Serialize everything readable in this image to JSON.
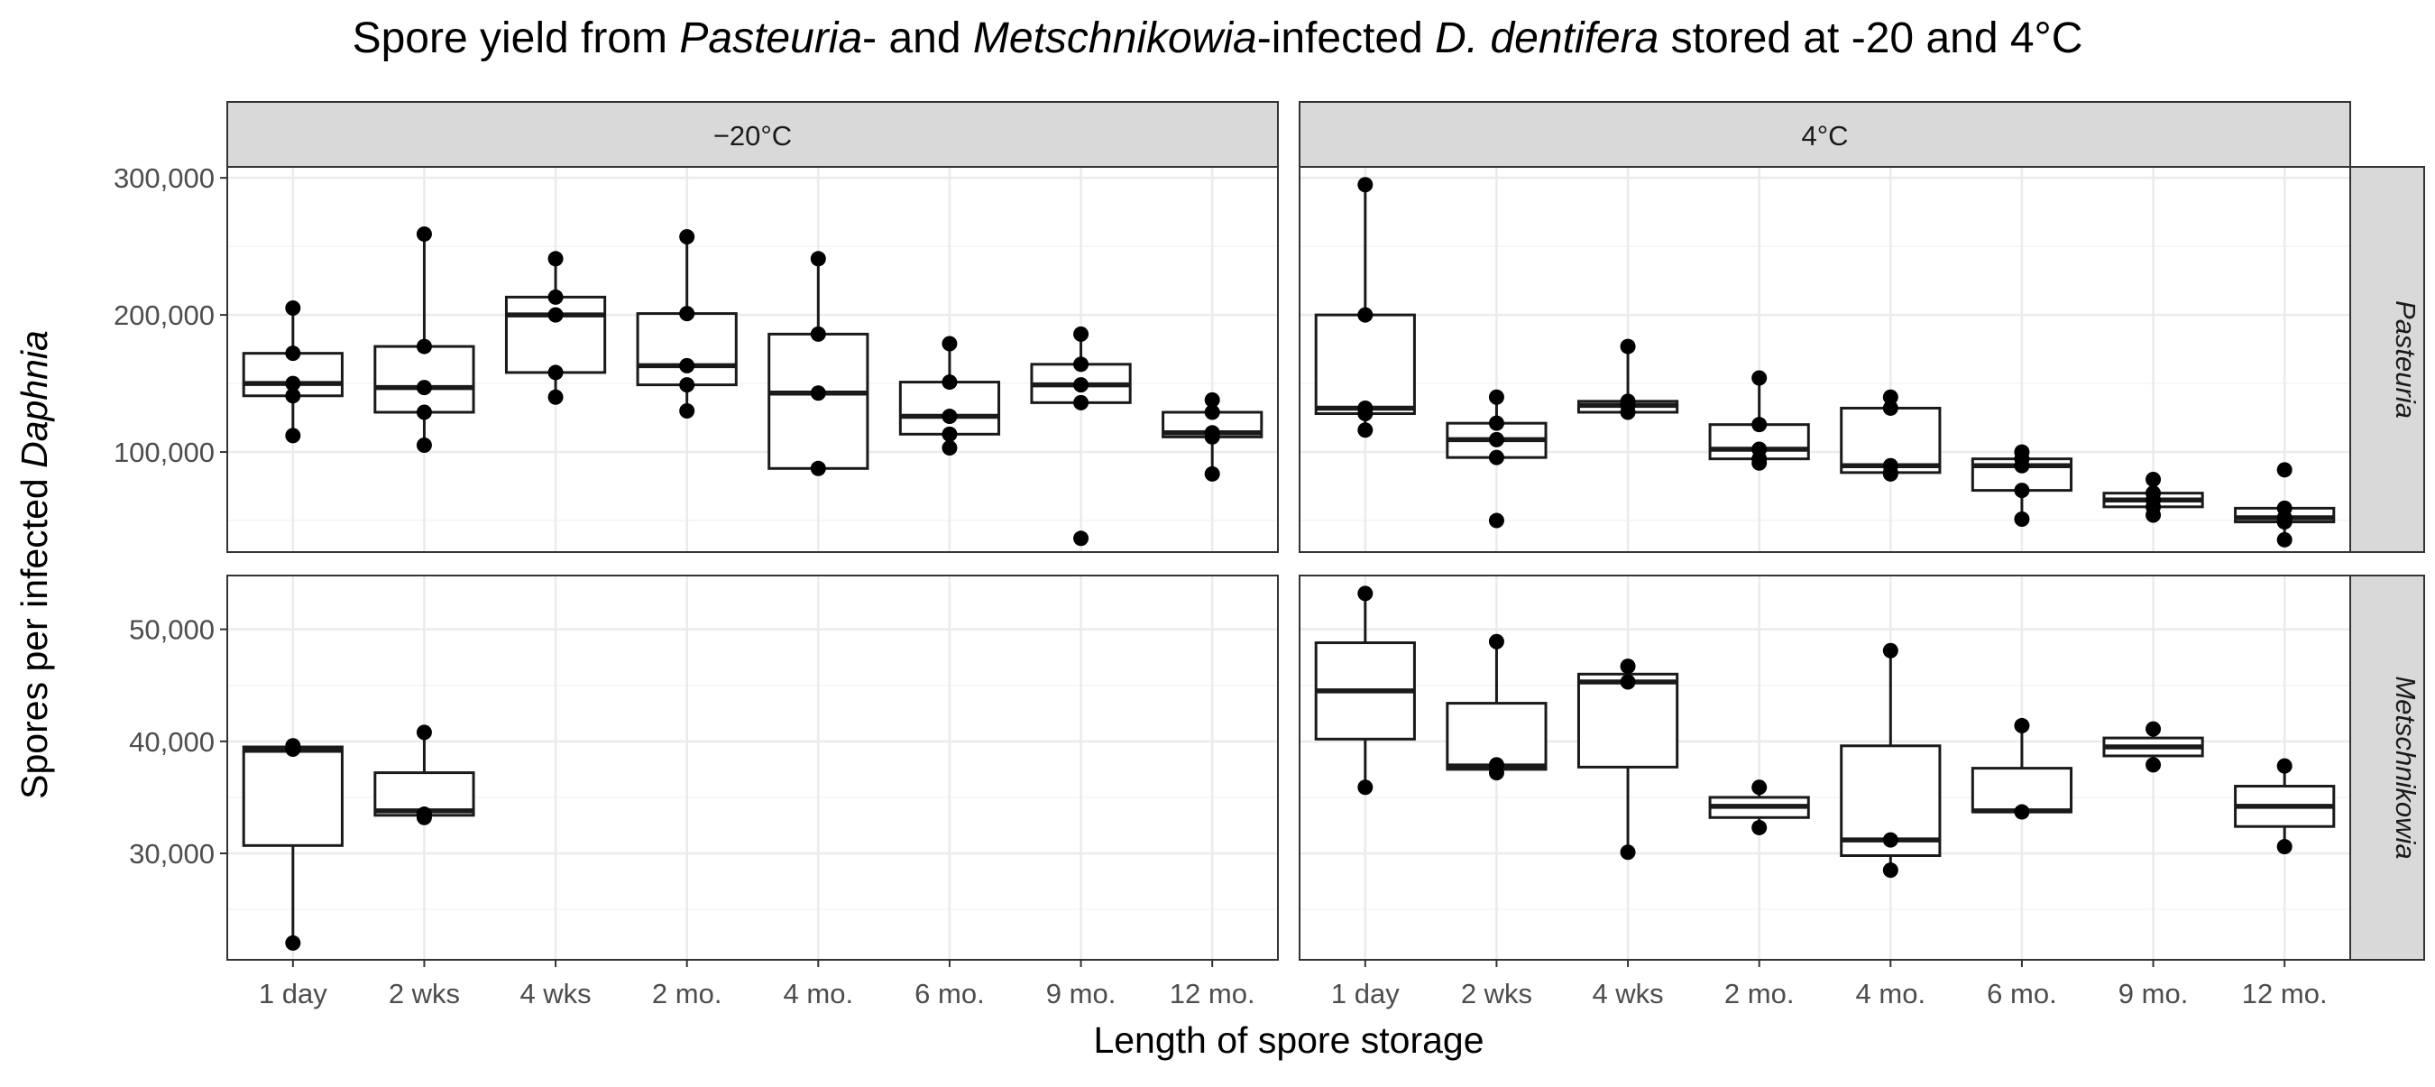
{
  "chart_data": {
    "type": "box",
    "title": {
      "parts": [
        {
          "text": "Spore yield from ",
          "italic": false
        },
        {
          "text": "Pasteuria",
          "italic": true
        },
        {
          "text": "- and ",
          "italic": false
        },
        {
          "text": "Metschnikowia",
          "italic": true
        },
        {
          "text": "-infected ",
          "italic": false
        },
        {
          "text": "D. dentifera",
          "italic": true
        },
        {
          "text": " stored at -20 and 4°C",
          "italic": false
        }
      ]
    },
    "xlabel": "Length of spore storage",
    "ylabel": {
      "parts": [
        {
          "text": "Spores per infected ",
          "italic": false
        },
        {
          "text": "Daphnia",
          "italic": true
        }
      ]
    },
    "categories": [
      "1 day",
      "2 wks",
      "4 wks",
      "2 mo.",
      "4 mo.",
      "6 mo.",
      "9 mo.",
      "12 mo."
    ],
    "facet_columns": [
      "−20°C",
      "4°C"
    ],
    "facet_rows": [
      "Pasteuria",
      "Metschnikowia"
    ],
    "rows": [
      {
        "ylim": [
          27000,
          308000
        ],
        "yticks": [
          100000,
          200000,
          300000
        ],
        "ytick_labels": [
          "100,000",
          "200,000",
          "300,000"
        ],
        "minor_yticks": [
          50000,
          150000,
          250000
        ]
      },
      {
        "ylim": [
          20500,
          54800
        ],
        "yticks": [
          30000,
          40000,
          50000
        ],
        "ytick_labels": [
          "30,000",
          "40,000",
          "50,000"
        ],
        "minor_yticks": [
          25000,
          35000,
          45000
        ]
      }
    ],
    "colors": {
      "panel_border": "#333333",
      "grid_major": "#ebebeb",
      "grid_minor": "#f4f4f4",
      "strip_fill": "#d9d9d9",
      "box_stroke": "#1a1a1a",
      "point_fill": "#000000"
    },
    "panels": [
      {
        "row": 0,
        "col": 0,
        "boxes": [
          {
            "category": "1 day",
            "lower_whisker": 112000,
            "q1": 141000,
            "median": 150000,
            "q3": 172000,
            "upper_whisker": 205000,
            "points": [
              205000,
              172000,
              150000,
              141000,
              112000
            ]
          },
          {
            "category": "2 wks",
            "lower_whisker": 105000,
            "q1": 129000,
            "median": 147000,
            "q3": 177000,
            "upper_whisker": 259000,
            "points": [
              259000,
              177000,
              147000,
              129000,
              105000
            ]
          },
          {
            "category": "4 wks",
            "lower_whisker": 140000,
            "q1": 158000,
            "median": 200000,
            "q3": 213000,
            "upper_whisker": 241000,
            "points": [
              241000,
              213000,
              200000,
              158000,
              140000
            ]
          },
          {
            "category": "2 mo.",
            "lower_whisker": 130000,
            "q1": 149000,
            "median": 163000,
            "q3": 201000,
            "upper_whisker": 257000,
            "points": [
              257000,
              201000,
              163000,
              149000,
              130000
            ]
          },
          {
            "category": "4 mo.",
            "lower_whisker": 88000,
            "q1": 88000,
            "median": 143000,
            "q3": 186000,
            "upper_whisker": 241000,
            "points": [
              241000,
              186000,
              143000,
              88000
            ]
          },
          {
            "category": "6 mo.",
            "lower_whisker": 103000,
            "q1": 113000,
            "median": 126000,
            "q3": 151000,
            "upper_whisker": 179000,
            "points": [
              179000,
              151000,
              126000,
              113000,
              103000
            ]
          },
          {
            "category": "9 mo.",
            "lower_whisker": 136000,
            "q1": 136000,
            "median": 149000,
            "q3": 164000,
            "upper_whisker": 186000,
            "points": [
              186000,
              164000,
              149000,
              136000,
              37000
            ]
          },
          {
            "category": "12 mo.",
            "lower_whisker": 84000,
            "q1": 111000,
            "median": 114000,
            "q3": 129000,
            "upper_whisker": 138000,
            "points": [
              138000,
              129000,
              114000,
              111000,
              84000
            ]
          }
        ]
      },
      {
        "row": 0,
        "col": 1,
        "boxes": [
          {
            "category": "1 day",
            "lower_whisker": 116000,
            "q1": 128000,
            "median": 132000,
            "q3": 200000,
            "upper_whisker": 295000,
            "points": [
              295000,
              200000,
              132000,
              128000,
              116000
            ]
          },
          {
            "category": "2 wks",
            "lower_whisker": 96000,
            "q1": 96000,
            "median": 109000,
            "q3": 121000,
            "upper_whisker": 140000,
            "points": [
              140000,
              121000,
              109000,
              96000,
              50000
            ]
          },
          {
            "category": "4 wks",
            "lower_whisker": 129000,
            "q1": 129000,
            "median": 134000,
            "q3": 137000,
            "upper_whisker": 177000,
            "points": [
              177000,
              137000,
              134000,
              129000
            ]
          },
          {
            "category": "2 mo.",
            "lower_whisker": 92000,
            "q1": 95000,
            "median": 102000,
            "q3": 120000,
            "upper_whisker": 154000,
            "points": [
              154000,
              120000,
              102000,
              95000,
              92000
            ]
          },
          {
            "category": "4 mo.",
            "lower_whisker": 84000,
            "q1": 85000,
            "median": 90000,
            "q3": 132000,
            "upper_whisker": 140000,
            "points": [
              140000,
              132000,
              90000,
              85000,
              84000
            ]
          },
          {
            "category": "6 mo.",
            "lower_whisker": 51000,
            "q1": 72000,
            "median": 90000,
            "q3": 95000,
            "upper_whisker": 100000,
            "points": [
              100000,
              95000,
              90000,
              72000,
              51000
            ]
          },
          {
            "category": "9 mo.",
            "lower_whisker": 54000,
            "q1": 60000,
            "median": 65000,
            "q3": 70000,
            "upper_whisker": 80000,
            "points": [
              80000,
              70000,
              65000,
              60000,
              54000
            ]
          },
          {
            "category": "12 mo.",
            "lower_whisker": 36000,
            "q1": 49000,
            "median": 52000,
            "q3": 59000,
            "upper_whisker": 59000,
            "points": [
              87000,
              59000,
              52000,
              49000,
              36000
            ]
          }
        ]
      },
      {
        "row": 1,
        "col": 0,
        "boxes": [
          {
            "category": "1 day",
            "lower_whisker": 22000,
            "q1": 30700,
            "median": 39200,
            "q3": 39500,
            "upper_whisker": 39500,
            "points": [
              39600,
              39300,
              22000
            ]
          },
          {
            "category": "2 wks",
            "lower_whisker": 33400,
            "q1": 33400,
            "median": 33800,
            "q3": 37200,
            "upper_whisker": 40800,
            "points": [
              40800,
              33500,
              33200
            ]
          }
        ]
      },
      {
        "row": 1,
        "col": 1,
        "boxes": [
          {
            "category": "1 day",
            "lower_whisker": 35900,
            "q1": 40200,
            "median": 44500,
            "q3": 48800,
            "upper_whisker": 53200,
            "points": [
              53200,
              35900
            ]
          },
          {
            "category": "2 wks",
            "lower_whisker": 37200,
            "q1": 37500,
            "median": 37800,
            "q3": 43400,
            "upper_whisker": 48900,
            "points": [
              48900,
              37900,
              37200
            ]
          },
          {
            "category": "4 wks",
            "lower_whisker": 30100,
            "q1": 37700,
            "median": 45300,
            "q3": 46000,
            "upper_whisker": 46700,
            "points": [
              46700,
              45300,
              30100
            ]
          },
          {
            "category": "2 mo.",
            "lower_whisker": 32300,
            "q1": 33200,
            "median": 34200,
            "q3": 35000,
            "upper_whisker": 35900,
            "points": [
              35900,
              32300
            ]
          },
          {
            "category": "4 mo.",
            "lower_whisker": 28500,
            "q1": 29800,
            "median": 31200,
            "q3": 39600,
            "upper_whisker": 48100,
            "points": [
              48100,
              31200,
              28500
            ]
          },
          {
            "category": "6 mo.",
            "lower_whisker": 33700,
            "q1": 33700,
            "median": 33800,
            "q3": 37600,
            "upper_whisker": 41400,
            "points": [
              41400,
              33700
            ]
          },
          {
            "category": "9 mo.",
            "lower_whisker": 37900,
            "q1": 38700,
            "median": 39500,
            "q3": 40300,
            "upper_whisker": 41100,
            "points": [
              41100,
              37900
            ]
          },
          {
            "category": "12 mo.",
            "lower_whisker": 30600,
            "q1": 32400,
            "median": 34200,
            "q3": 36000,
            "upper_whisker": 37800,
            "points": [
              37800,
              30600
            ]
          }
        ]
      }
    ]
  }
}
